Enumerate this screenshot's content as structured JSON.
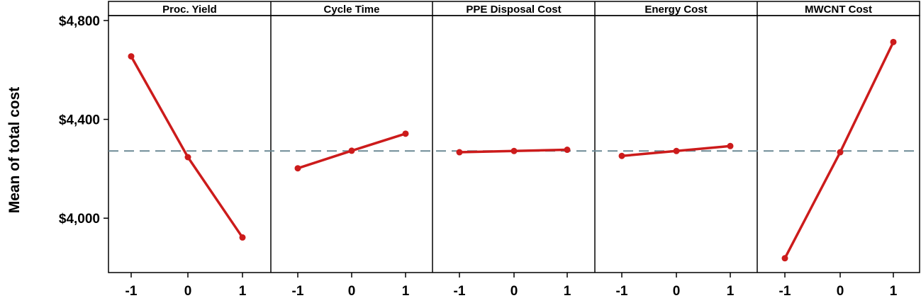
{
  "chart_data": {
    "type": "line",
    "title": "",
    "ylabel": "Mean of total cost",
    "xlabel": "",
    "ylim": [
      3780,
      4820
    ],
    "y_ticks": [
      4000,
      4400,
      4800
    ],
    "y_tick_labels": [
      "$4,000",
      "$4,400",
      "$4,800"
    ],
    "x_levels": [
      "-1",
      "0",
      "1"
    ],
    "reference_line": 4272,
    "series_color": "#cc1b1b",
    "reference_color": "#6d8a95",
    "panels": [
      {
        "name": "Proc. Yield",
        "values": [
          4655,
          4247,
          3922
        ]
      },
      {
        "name": "Cycle Time",
        "values": [
          4202,
          4273,
          4342
        ]
      },
      {
        "name": "PPE Disposal Cost",
        "values": [
          4267,
          4272,
          4277
        ]
      },
      {
        "name": "Energy Cost",
        "values": [
          4252,
          4272,
          4292
        ]
      },
      {
        "name": "MWCNT Cost",
        "values": [
          3838,
          4267,
          4713
        ]
      }
    ]
  }
}
